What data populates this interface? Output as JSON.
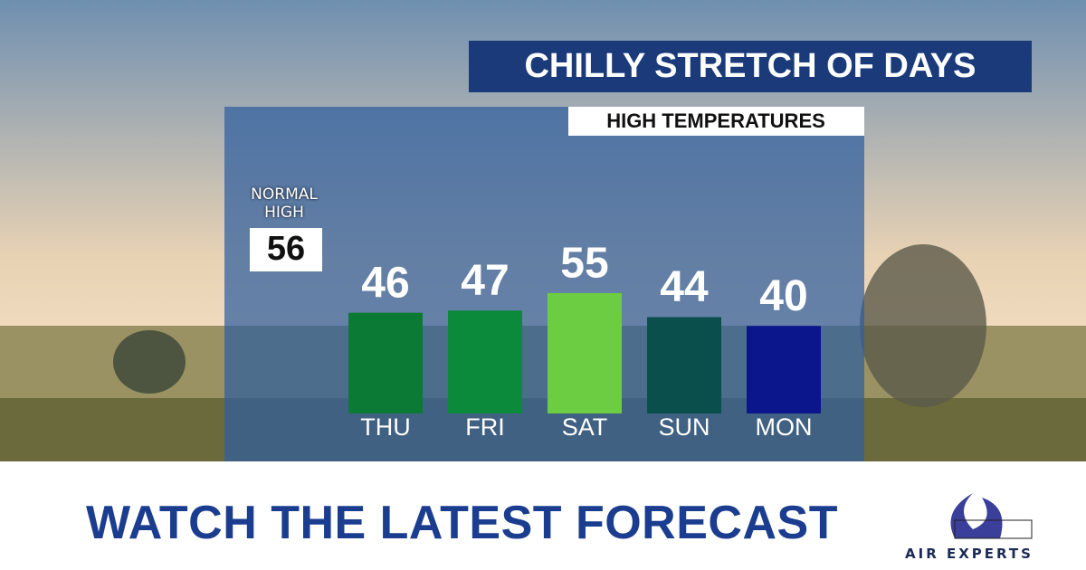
{
  "chart_data": {
    "type": "bar",
    "title": "CHILLY STRETCH OF DAYS",
    "subtitle": "HIGH TEMPERATURES",
    "categories": [
      "THU",
      "FRI",
      "SAT",
      "SUN",
      "MON"
    ],
    "values": [
      46,
      47,
      55,
      44,
      40
    ],
    "colors": [
      "#0b7a34",
      "#0a8a3a",
      "#6ccc42",
      "#0b4f4c",
      "#0b168c"
    ],
    "normal_high": {
      "label": "NORMAL HIGH",
      "value": 56
    }
  },
  "footer": {
    "headline": "WATCH THE LATEST FORECAST",
    "sponsor": "AIR EXPERTS"
  }
}
